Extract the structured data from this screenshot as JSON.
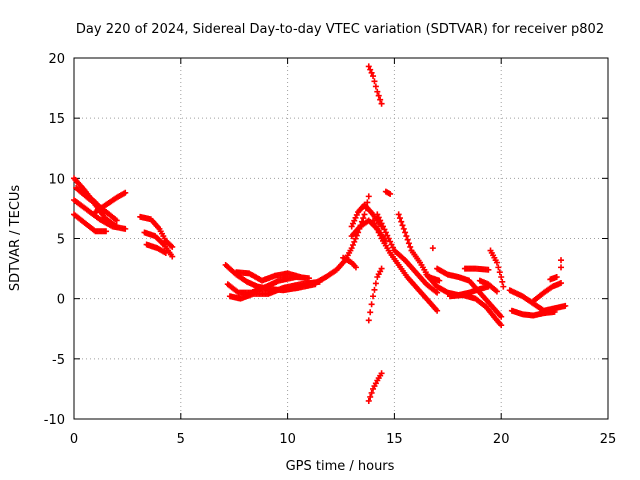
{
  "chart_data": {
    "type": "scatter",
    "title": "Day 220 of 2024, Sidereal Day-to-day VTEC variation (SDTVAR) for receiver p802",
    "xlabel": "GPS time / hours",
    "ylabel": "SDTVAR / TECUs",
    "xlim": [
      0,
      25
    ],
    "ylim": [
      -10,
      20
    ],
    "xticks": [
      "0",
      "5",
      "10",
      "15",
      "20",
      "25"
    ],
    "yticks": [
      "-10",
      "-5",
      "0",
      "5",
      "10",
      "15",
      "20"
    ],
    "grid": true,
    "marker": "plus",
    "color": "#ff0000",
    "tracks": [
      [
        [
          0.0,
          10.0
        ],
        [
          0.5,
          9.0
        ],
        [
          1.0,
          7.8
        ],
        [
          1.5,
          6.6
        ],
        [
          2.0,
          6.0
        ]
      ],
      [
        [
          0.0,
          8.2
        ],
        [
          0.6,
          7.4
        ],
        [
          1.2,
          6.6
        ],
        [
          1.8,
          6.0
        ],
        [
          2.4,
          5.8
        ]
      ],
      [
        [
          0.0,
          7.0
        ],
        [
          0.5,
          6.3
        ],
        [
          1.0,
          5.6
        ],
        [
          1.5,
          5.6
        ]
      ],
      [
        [
          0.1,
          9.2
        ],
        [
          0.7,
          8.3
        ],
        [
          1.3,
          7.5
        ],
        [
          2.0,
          6.5
        ]
      ],
      [
        [
          1.0,
          7.2
        ],
        [
          1.5,
          7.8
        ],
        [
          2.0,
          8.4
        ],
        [
          2.4,
          8.8
        ]
      ],
      [
        [
          0.5,
          8.8
        ],
        [
          1.0,
          8.0
        ],
        [
          1.4,
          7.2
        ]
      ],
      [
        [
          3.1,
          6.8
        ],
        [
          3.6,
          6.6
        ],
        [
          4.0,
          5.8
        ],
        [
          4.3,
          4.8
        ],
        [
          4.6,
          4.3
        ]
      ],
      [
        [
          3.3,
          5.5
        ],
        [
          3.8,
          5.2
        ],
        [
          4.2,
          4.5
        ],
        [
          4.6,
          3.5
        ]
      ],
      [
        [
          3.4,
          4.5
        ],
        [
          3.9,
          4.2
        ],
        [
          4.3,
          3.8
        ]
      ],
      [
        [
          7.1,
          2.8
        ],
        [
          7.6,
          2.0
        ],
        [
          8.1,
          1.4
        ],
        [
          8.6,
          1.0
        ],
        [
          9.2,
          0.8
        ],
        [
          9.8,
          0.7
        ],
        [
          10.5,
          0.9
        ],
        [
          11.3,
          1.2
        ]
      ],
      [
        [
          7.2,
          1.2
        ],
        [
          7.7,
          0.5
        ],
        [
          8.3,
          0.5
        ],
        [
          9.0,
          1.0
        ],
        [
          9.6,
          1.5
        ],
        [
          10.4,
          1.8
        ],
        [
          11.0,
          1.7
        ]
      ],
      [
        [
          7.3,
          0.2
        ],
        [
          7.8,
          0.0
        ],
        [
          8.4,
          0.4
        ],
        [
          9.1,
          0.4
        ],
        [
          9.8,
          0.9
        ],
        [
          10.6,
          1.2
        ],
        [
          11.5,
          1.4
        ]
      ],
      [
        [
          7.6,
          2.2
        ],
        [
          8.2,
          2.1
        ],
        [
          8.8,
          1.5
        ],
        [
          9.4,
          1.9
        ],
        [
          10.0,
          2.1
        ],
        [
          10.6,
          1.8
        ]
      ],
      [
        [
          11.3,
          1.3
        ],
        [
          11.8,
          1.8
        ],
        [
          12.3,
          2.4
        ],
        [
          12.7,
          3.2
        ],
        [
          13.0,
          4.2
        ],
        [
          13.3,
          5.5
        ],
        [
          13.6,
          7.0
        ],
        [
          13.8,
          8.5
        ]
      ],
      [
        [
          12.6,
          3.4
        ],
        [
          13.0,
          3.0
        ],
        [
          13.2,
          2.6
        ]
      ],
      [
        [
          13.0,
          5.2
        ],
        [
          13.4,
          6.0
        ],
        [
          13.8,
          6.5
        ],
        [
          14.2,
          5.8
        ],
        [
          14.6,
          4.8
        ]
      ],
      [
        [
          13.0,
          6.0
        ],
        [
          13.3,
          7.2
        ],
        [
          13.6,
          7.8
        ],
        [
          14.0,
          7.0
        ],
        [
          14.4,
          6.0
        ]
      ],
      [
        [
          13.8,
          19.3
        ],
        [
          14.0,
          18.5
        ],
        [
          14.2,
          17.2
        ],
        [
          14.4,
          16.2
        ]
      ],
      [
        [
          13.8,
          -8.5
        ],
        [
          14.0,
          -7.5
        ],
        [
          14.2,
          -6.8
        ],
        [
          14.4,
          -6.2
        ]
      ],
      [
        [
          13.8,
          -1.8
        ],
        [
          14.0,
          0.2
        ],
        [
          14.2,
          1.8
        ],
        [
          14.4,
          2.5
        ]
      ],
      [
        [
          14.0,
          6.5
        ],
        [
          14.4,
          5.0
        ],
        [
          14.8,
          3.8
        ],
        [
          15.2,
          2.8
        ],
        [
          15.6,
          1.8
        ],
        [
          16.0,
          1.0
        ],
        [
          16.5,
          0.0
        ],
        [
          17.0,
          -1.0
        ]
      ],
      [
        [
          14.2,
          7.0
        ],
        [
          14.6,
          5.5
        ],
        [
          15.0,
          4.0
        ],
        [
          15.5,
          3.2
        ],
        [
          16.0,
          2.2
        ],
        [
          16.5,
          1.2
        ],
        [
          17.0,
          0.5
        ]
      ],
      [
        [
          14.6,
          8.9
        ],
        [
          14.8,
          8.7
        ]
      ],
      [
        [
          15.2,
          7.0
        ],
        [
          15.5,
          5.5
        ],
        [
          15.8,
          4.0
        ],
        [
          16.2,
          3.0
        ],
        [
          16.6,
          1.8
        ],
        [
          17.1,
          1.5
        ]
      ],
      [
        [
          16.5,
          2.0
        ],
        [
          17.0,
          1.0
        ],
        [
          17.5,
          0.5
        ],
        [
          18.0,
          0.3
        ],
        [
          18.5,
          0.5
        ],
        [
          19.0,
          0.8
        ],
        [
          19.4,
          1.0
        ]
      ],
      [
        [
          16.8,
          4.2
        ]
      ],
      [
        [
          17.0,
          2.5
        ],
        [
          17.5,
          2.0
        ],
        [
          18.0,
          1.8
        ],
        [
          18.5,
          1.5
        ],
        [
          19.0,
          0.5
        ],
        [
          19.5,
          -0.5
        ],
        [
          20.0,
          -1.5
        ]
      ],
      [
        [
          17.6,
          0.2
        ],
        [
          18.2,
          0.3
        ],
        [
          18.8,
          0.0
        ],
        [
          19.3,
          -0.7
        ],
        [
          19.8,
          -1.8
        ],
        [
          20.0,
          -2.2
        ]
      ],
      [
        [
          18.3,
          2.5
        ],
        [
          18.8,
          2.5
        ],
        [
          19.4,
          2.4
        ]
      ],
      [
        [
          19.0,
          1.5
        ],
        [
          19.4,
          1.2
        ],
        [
          19.8,
          0.6
        ]
      ],
      [
        [
          19.5,
          4.0
        ],
        [
          19.8,
          3.0
        ],
        [
          20.0,
          1.8
        ],
        [
          20.1,
          1.0
        ]
      ],
      [
        [
          20.4,
          0.7
        ],
        [
          21.0,
          0.2
        ],
        [
          21.5,
          -0.4
        ],
        [
          22.0,
          -1.0
        ],
        [
          22.5,
          -0.8
        ],
        [
          23.0,
          -0.6
        ]
      ],
      [
        [
          20.5,
          -1.0
        ],
        [
          21.0,
          -1.3
        ],
        [
          21.5,
          -1.4
        ],
        [
          22.0,
          -1.2
        ],
        [
          22.5,
          -1.1
        ]
      ],
      [
        [
          21.5,
          -0.2
        ],
        [
          22.0,
          0.5
        ],
        [
          22.4,
          1.0
        ],
        [
          22.8,
          1.3
        ]
      ],
      [
        [
          22.3,
          1.6
        ],
        [
          22.6,
          1.8
        ]
      ],
      [
        [
          22.8,
          3.2
        ],
        [
          22.8,
          2.6
        ]
      ]
    ]
  }
}
